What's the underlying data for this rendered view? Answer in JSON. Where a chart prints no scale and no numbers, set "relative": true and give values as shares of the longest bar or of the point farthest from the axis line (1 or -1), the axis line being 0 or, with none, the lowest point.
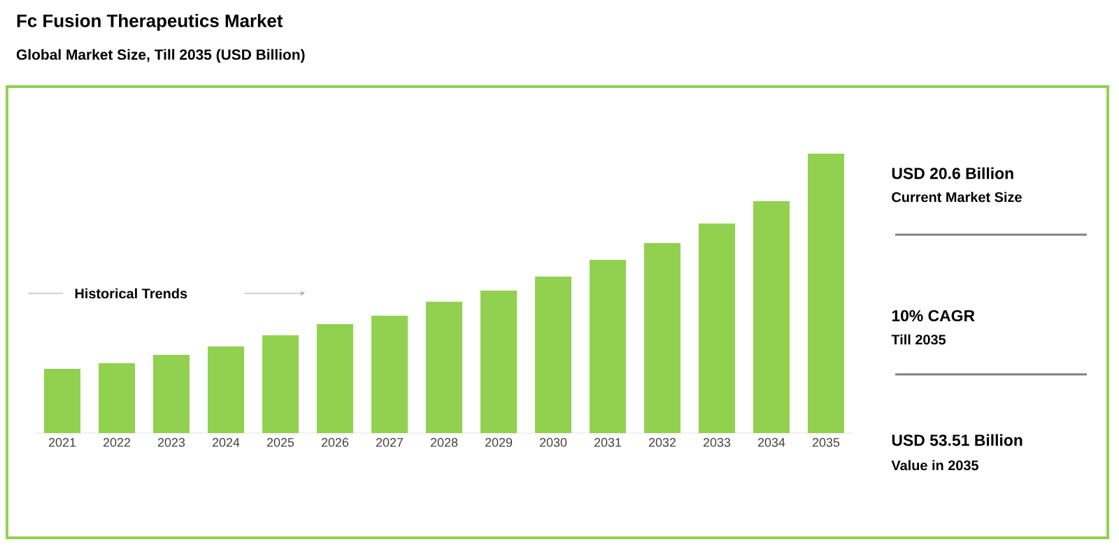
{
  "chart_data": {
    "type": "bar",
    "title": "Fc Fusion Therapeutics Market",
    "subtitle": "Global Market Size, Till 2035 (USD Billion)",
    "categories": [
      "2021",
      "2022",
      "2023",
      "2024",
      "2025",
      "2026",
      "2027",
      "2028",
      "2029",
      "2030",
      "2031",
      "2032",
      "2033",
      "2034",
      "2035"
    ],
    "values": [
      0.23,
      0.25,
      0.28,
      0.31,
      0.35,
      0.39,
      0.42,
      0.47,
      0.51,
      0.56,
      0.62,
      0.68,
      0.75,
      0.83,
      1
    ],
    "color": "#92d050",
    "relative": true,
    "annotations": [
      "Historical Trends",
      "USD 20.6 Billion",
      "Current Market Size",
      "10% CAGR",
      "Till 2035",
      "USD 53.51 Billion",
      "Value in 2035"
    ]
  }
}
